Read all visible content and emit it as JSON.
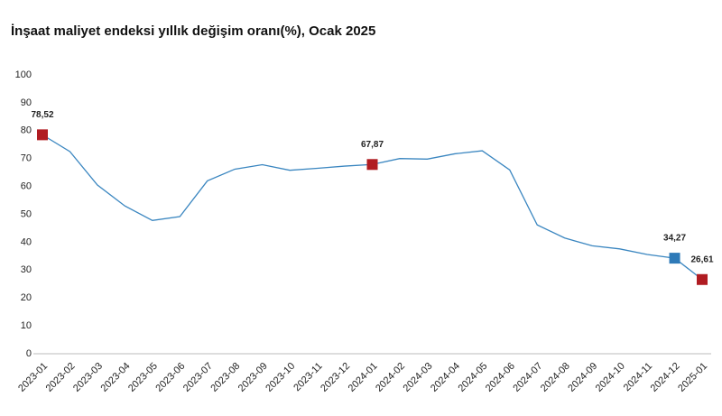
{
  "chart_data": {
    "type": "line",
    "title": "İnşaat maliyet endeksi yıllık değişim oranı(%), Ocak 2025",
    "categories": [
      "2023-01",
      "2023-02",
      "2023-03",
      "2023-04",
      "2023-05",
      "2023-06",
      "2023-07",
      "2023-08",
      "2023-09",
      "2023-10",
      "2023-11",
      "2023-12",
      "2024-01",
      "2024-02",
      "2024-03",
      "2024-04",
      "2024-05",
      "2024-06",
      "2024-07",
      "2024-08",
      "2024-09",
      "2024-10",
      "2024-11",
      "2024-12",
      "2025-01"
    ],
    "values": [
      78.52,
      72.5,
      60.5,
      53,
      47.8,
      49.2,
      62,
      66.2,
      67.8,
      65.8,
      66.5,
      67.3,
      67.87,
      70,
      69.8,
      71.7,
      72.8,
      65.9,
      46.2,
      41.5,
      38.7,
      37.6,
      35.6,
      34.27,
      26.61
    ],
    "value_labels": [
      "78,52",
      null,
      null,
      null,
      null,
      null,
      null,
      null,
      null,
      null,
      null,
      null,
      "67,87",
      null,
      null,
      null,
      null,
      null,
      null,
      null,
      null,
      null,
      null,
      "34,27",
      "26,61"
    ],
    "marker_colors": [
      "#b01c22",
      null,
      null,
      null,
      null,
      null,
      null,
      null,
      null,
      null,
      null,
      null,
      "#b01c22",
      null,
      null,
      null,
      null,
      null,
      null,
      null,
      null,
      null,
      null,
      "#2e7ab8",
      "#b01c22"
    ],
    "color": "#3a86c0",
    "ylim": [
      0,
      100
    ],
    "yticks": [
      0,
      10,
      20,
      30,
      40,
      50,
      60,
      70,
      80,
      90,
      100
    ],
    "grid": false
  }
}
